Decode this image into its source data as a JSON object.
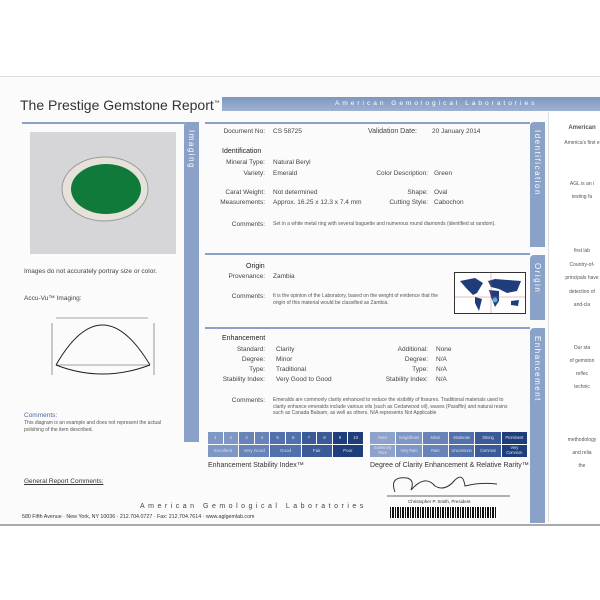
{
  "header": {
    "title": "The Prestige Gemstone Report",
    "tm": "™",
    "banner": "American Gemological Laboratories"
  },
  "imaging": {
    "tab": "Imaging",
    "disclaimer": "Images do not accurately portray size or color.",
    "accuvu": "Accu-Vu™ Imaging:",
    "comments_label": "Comments:",
    "comments": "This diagram is an example and does not represent the actual polishing of the item described."
  },
  "document": {
    "doc_label": "Document No:",
    "doc_no": "CS 58725",
    "date_label": "Validation Date:",
    "date": "20 January 2014"
  },
  "identification": {
    "tab": "Identification",
    "heading": "Identification",
    "mineral_label": "Mineral Type:",
    "mineral": "Natural Beryl",
    "variety_label": "Variety:",
    "variety": "Emerald",
    "color_label": "Color Description:",
    "color": "Green",
    "carat_label": "Carat Weight:",
    "carat": "Not determined",
    "shape_label": "Shape:",
    "shape": "Oval",
    "meas_label": "Measurements:",
    "meas": "Approx. 16.25 x 12.3 x 7.4  mm",
    "cut_label": "Cutting Style:",
    "cut": "Cabochon",
    "comments_label": "Comments:",
    "comments": "Set in a white metal ring with several baguette and numerous round diamonds (identified at random)."
  },
  "origin": {
    "tab": "Origin",
    "heading": "Origin",
    "prov_label": "Provenance:",
    "prov": "Zambia",
    "comments_label": "Comments:",
    "comments": "It is the opinion of the Laboratory, based on the weight of evidence that the origin of this material would be classified as Zambia."
  },
  "enhancement": {
    "tab": "Enhancement",
    "heading": "Enhancement",
    "standard_label": "Standard:",
    "standard": "Clarity",
    "degree_label": "Degree:",
    "degree": "Minor",
    "type_label": "Type:",
    "type": "Traditional",
    "stab_label": "Stability Index:",
    "stab": "Very Good to Good",
    "add_label": "Additional:",
    "add": "None",
    "add_degree": "N/A",
    "add_type": "N/A",
    "add_stab": "N/A",
    "comments_label": "Comments:",
    "comments": "Emeralds are commonly clarity enhanced to reduce the visibility of fissures. Traditional materials used to clarity enhance emeralds include various oils (such as Cedarwood oil), waxes (Paraffin) and natural resins such as Canada Balsam, as well as others. N/A represents Not Applicable",
    "stability_numbers": [
      "1",
      "2",
      "3",
      "4",
      "5",
      "6",
      "7",
      "8",
      "9",
      "10"
    ],
    "stability_grades": [
      "Excellent",
      "Very Good",
      "Good",
      "Fair",
      "Poor"
    ],
    "stability_title": "Enhancement Stability Index™",
    "degree_top": [
      "None",
      "Insignificant",
      "Minor",
      "Moderate",
      "Strong",
      "Prominent"
    ],
    "degree_bottom": [
      "Extremely Rare",
      "Very Rare",
      "Rare",
      "Uncommon",
      "Common",
      "Very Common"
    ],
    "degree_title": "Degree of Clarity Enhancement & Relative Rarity™"
  },
  "footer": {
    "general": "General Report Comments:",
    "lab": "American Gemological Laboratories",
    "address": "580 Fifth Avenue  ·  New York, NY 10036  ·  212.704.0727  ·  Fax: 212.704.7614  ·  www.aglgemlab.com",
    "signer": "Christopher P. Smith, President"
  },
  "right_page": {
    "lines": [
      "American",
      "America's first e",
      "AGL is an i",
      "testing fa",
      "first lab",
      "Country-of-",
      "principals have",
      "detection of",
      "and-cla",
      "Our sta",
      "of gemston",
      "reflec",
      "technic",
      "methodology",
      "and relia",
      "the"
    ]
  },
  "colors": {
    "accent": "#8aa1c8",
    "dark_blue": "#1f3d7a",
    "emerald": "#0f7a3a"
  }
}
